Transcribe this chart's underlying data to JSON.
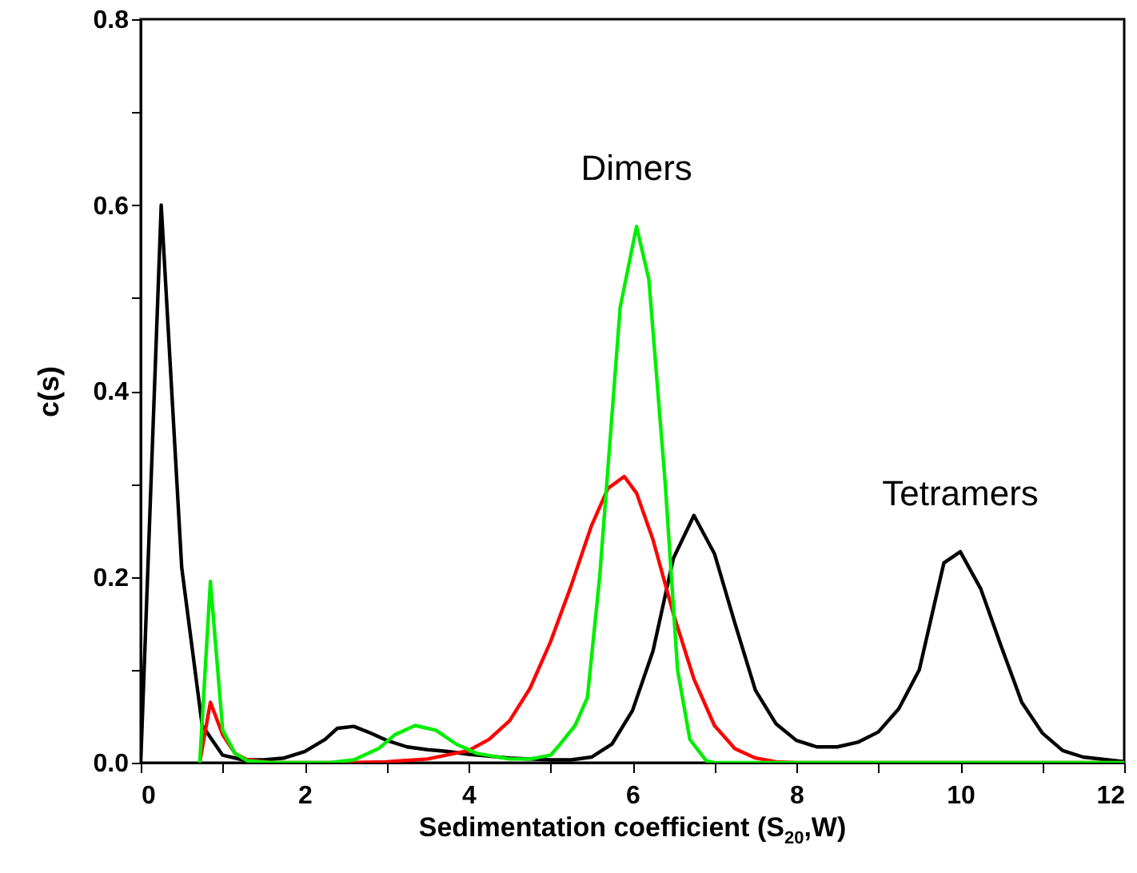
{
  "chart_data": {
    "type": "line",
    "xlabel": "Sedimentation coefficient (S$_{20}$,W)",
    "ylabel": "c(s)",
    "xlim": [
      0,
      12
    ],
    "ylim": [
      0,
      0.8
    ],
    "xticks": [
      0,
      {
        "value": 1,
        "label": null
      },
      2,
      {
        "value": 3,
        "label": null
      },
      4,
      {
        "value": 5,
        "label": null
      },
      6,
      {
        "value": 7,
        "label": null
      },
      8,
      {
        "value": 9,
        "label": null
      },
      10,
      {
        "value": 11,
        "label": null
      },
      12
    ],
    "yticks": [
      {
        "value": 0,
        "label": "0.0"
      },
      {
        "value": 0.1,
        "label": null
      },
      {
        "value": 0.2,
        "label": "0.2"
      },
      {
        "value": 0.3,
        "label": null
      },
      {
        "value": 0.4,
        "label": "0.4"
      },
      {
        "value": 0.5,
        "label": null
      },
      {
        "value": 0.6,
        "label": "0.6"
      },
      {
        "value": 0.7,
        "label": null
      },
      {
        "value": 0.8,
        "label": "0.8"
      }
    ],
    "grid": false,
    "marker": "none",
    "line_style": "solid",
    "annotations": [
      {
        "text": "Dimers",
        "x": 6.05,
        "y": 0.577
      },
      {
        "text": "Tetramers",
        "x": 10,
        "y": 0.227
      }
    ],
    "series": [
      {
        "color": "#000000",
        "x": [
          0,
          0.25,
          0.5,
          0.75,
          1.0,
          1.25,
          1.5,
          1.75,
          2.0,
          2.25,
          2.4,
          2.6,
          2.8,
          3.0,
          3.25,
          3.5,
          3.75,
          4.0,
          4.25,
          4.5,
          4.75,
          5.0,
          5.25,
          5.5,
          5.75,
          6.0,
          6.25,
          6.5,
          6.75,
          7.0,
          7.25,
          7.5,
          7.75,
          8.0,
          8.25,
          8.5,
          8.75,
          9.0,
          9.25,
          9.5,
          9.8,
          10.0,
          10.25,
          10.5,
          10.75,
          11.0,
          11.25,
          11.5,
          12
        ],
        "values": [
          0,
          0.6,
          0.21,
          0.04,
          0.008,
          0.003,
          0.003,
          0.005,
          0.012,
          0.025,
          0.037,
          0.039,
          0.032,
          0.024,
          0.017,
          0.014,
          0.012,
          0.009,
          0.007,
          0.005,
          0.004,
          0.003,
          0.003,
          0.006,
          0.02,
          0.056,
          0.12,
          0.22,
          0.266,
          0.225,
          0.15,
          0.078,
          0.042,
          0.024,
          0.017,
          0.017,
          0.022,
          0.033,
          0.058,
          0.1,
          0.215,
          0.227,
          0.187,
          0.125,
          0.065,
          0.032,
          0.013,
          0.006,
          0.001
        ]
      },
      {
        "color": "#ff0000",
        "x": [
          0.72,
          0.85,
          1.0,
          1.15,
          1.3,
          1.6,
          2.5,
          3.0,
          3.5,
          4.0,
          4.25,
          4.5,
          4.75,
          5.0,
          5.25,
          5.5,
          5.7,
          5.9,
          6.05,
          6.25,
          6.5,
          6.75,
          7.0,
          7.25,
          7.5,
          7.75,
          8,
          12
        ],
        "values": [
          0,
          0.065,
          0.03,
          0.01,
          0.003,
          0,
          0,
          0.001,
          0.004,
          0.013,
          0.025,
          0.045,
          0.08,
          0.13,
          0.19,
          0.255,
          0.295,
          0.308,
          0.29,
          0.24,
          0.16,
          0.09,
          0.04,
          0.015,
          0.005,
          0.001,
          0,
          0
        ]
      },
      {
        "color": "#00ee00",
        "x": [
          0.72,
          0.85,
          1.0,
          1.15,
          1.3,
          1.6,
          2.3,
          2.6,
          2.9,
          3.1,
          3.35,
          3.6,
          3.85,
          4.1,
          4.5,
          4.75,
          5.0,
          5.1,
          5.3,
          5.45,
          5.6,
          5.85,
          6.05,
          6.2,
          6.4,
          6.55,
          6.7,
          6.9,
          7,
          12
        ],
        "values": [
          0,
          0.195,
          0.035,
          0.01,
          0.002,
          0,
          0,
          0.003,
          0.015,
          0.03,
          0.04,
          0.035,
          0.02,
          0.01,
          0.004,
          0.004,
          0.008,
          0.018,
          0.04,
          0.07,
          0.2,
          0.49,
          0.577,
          0.52,
          0.3,
          0.1,
          0.025,
          0.002,
          0,
          0
        ]
      }
    ]
  }
}
